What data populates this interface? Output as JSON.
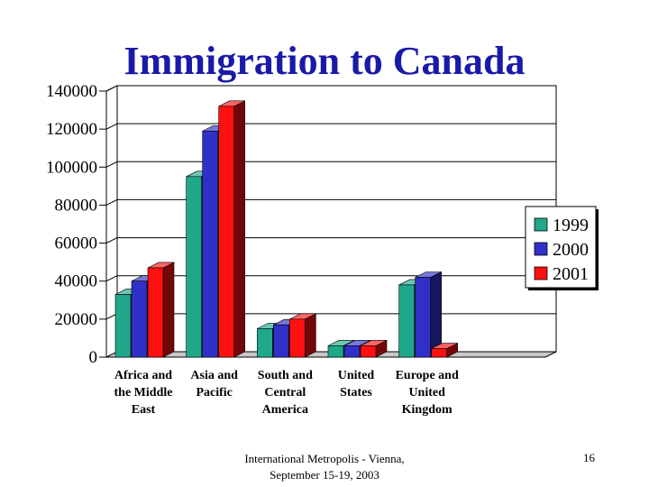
{
  "slide": {
    "footer_line1": "International Metropolis - Vienna,",
    "footer_line2": "September 15-19, 2003",
    "page_number": "16"
  },
  "chart_data": {
    "type": "bar",
    "title": "Immigration to Canada",
    "categories": [
      [
        "Africa and",
        "the Middle",
        "East"
      ],
      [
        "Asia and",
        "Pacific"
      ],
      [
        "South and",
        "Central",
        "America"
      ],
      [
        "United",
        "States"
      ],
      [
        "Europe and",
        "United",
        "Kingdom"
      ]
    ],
    "series": [
      {
        "name": "1999",
        "color": "#1fa88a",
        "values": [
          33000,
          95000,
          15000,
          6000,
          38000
        ]
      },
      {
        "name": "2000",
        "color": "#3030c8",
        "values": [
          40000,
          119000,
          17000,
          6000,
          42000
        ]
      },
      {
        "name": "2001",
        "color": "#ff1010",
        "values": [
          47000,
          132000,
          20000,
          6000,
          4500
        ]
      }
    ],
    "ylim": [
      0,
      140000
    ],
    "yticks": [
      "0",
      "20000",
      "40000",
      "60000",
      "80000",
      "100000",
      "120000",
      "140000"
    ],
    "grid": true,
    "legend_position": "right"
  }
}
